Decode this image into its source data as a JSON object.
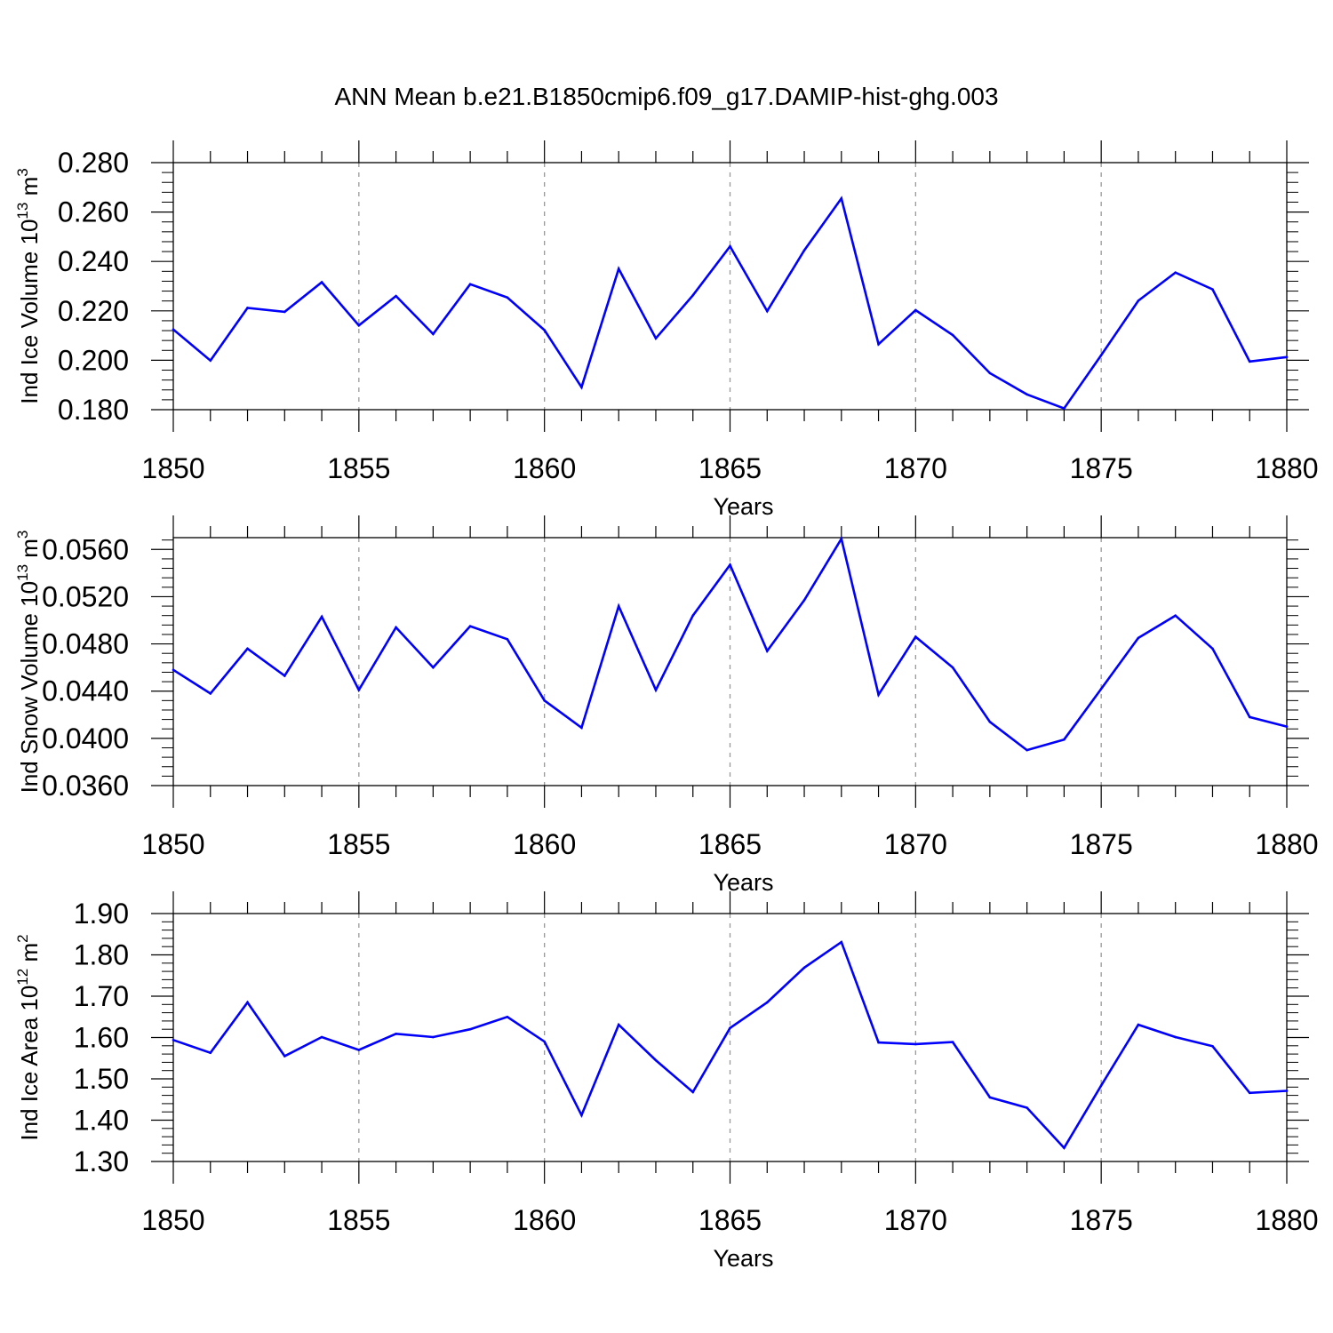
{
  "title": "ANN Mean b.e21.B1850cmip6.f09_g17.DAMIP-hist-ghg.003",
  "line_color": "#0000ff",
  "chart_data": [
    {
      "type": "line",
      "ylabel": "Ind Ice Volume 10",
      "ylabel_exp": "13",
      "ylabel_unit": " m",
      "ylabel_unit_exp": "3",
      "xlabel": "Years",
      "xlim": [
        1850,
        1880
      ],
      "ylim": [
        0.18,
        0.28
      ],
      "yticks": [
        "0.180",
        "0.200",
        "0.220",
        "0.240",
        "0.260",
        "0.280"
      ],
      "ytick_values": [
        0.18,
        0.2,
        0.22,
        0.24,
        0.26,
        0.28
      ],
      "xticks": [
        "1850",
        "1855",
        "1860",
        "1865",
        "1870",
        "1875",
        "1880"
      ],
      "grid": "vertical dashed at major x ticks",
      "x": [
        1850,
        1851,
        1852,
        1853,
        1854,
        1855,
        1856,
        1857,
        1858,
        1859,
        1860,
        1861,
        1862,
        1863,
        1864,
        1865,
        1866,
        1867,
        1868,
        1869,
        1870,
        1871,
        1872,
        1873,
        1874,
        1875,
        1876,
        1877,
        1878,
        1879,
        1880
      ],
      "values": [
        0.2125,
        0.1999,
        0.2212,
        0.2196,
        0.2316,
        0.2141,
        0.226,
        0.2106,
        0.2308,
        0.2254,
        0.2122,
        0.1891,
        0.237,
        0.2089,
        0.2263,
        0.2461,
        0.2199,
        0.2445,
        0.2655,
        0.2065,
        0.2203,
        0.2102,
        0.1948,
        0.1862,
        0.1805,
        0.2021,
        0.2241,
        0.2355,
        0.2287,
        0.1995,
        0.2013
      ]
    },
    {
      "type": "line",
      "ylabel": "Ind Snow Volume 10",
      "ylabel_exp": "13",
      "ylabel_unit": " m",
      "ylabel_unit_exp": "3",
      "xlabel": "Years",
      "xlim": [
        1850,
        1880
      ],
      "ylim": [
        0.036,
        0.057
      ],
      "yticks": [
        "0.0360",
        "0.0400",
        "0.0440",
        "0.0480",
        "0.0520",
        "0.0560"
      ],
      "ytick_values": [
        0.036,
        0.04,
        0.044,
        0.048,
        0.052,
        0.056
      ],
      "xticks": [
        "1850",
        "1855",
        "1860",
        "1865",
        "1870",
        "1875",
        "1880"
      ],
      "grid": "vertical dashed at major x ticks",
      "x": [
        1850,
        1851,
        1852,
        1853,
        1854,
        1855,
        1856,
        1857,
        1858,
        1859,
        1860,
        1861,
        1862,
        1863,
        1864,
        1865,
        1866,
        1867,
        1868,
        1869,
        1870,
        1871,
        1872,
        1873,
        1874,
        1875,
        1876,
        1877,
        1878,
        1879,
        1880
      ],
      "values": [
        0.0458,
        0.0438,
        0.0476,
        0.0453,
        0.0503,
        0.0441,
        0.0494,
        0.046,
        0.0495,
        0.0484,
        0.0432,
        0.0409,
        0.0512,
        0.0441,
        0.0504,
        0.0547,
        0.0474,
        0.0517,
        0.0569,
        0.0437,
        0.0486,
        0.046,
        0.0414,
        0.039,
        0.0399,
        0.0442,
        0.0485,
        0.0504,
        0.0476,
        0.0418,
        0.041
      ]
    },
    {
      "type": "line",
      "ylabel": "Ind Ice Area 10",
      "ylabel_exp": "12",
      "ylabel_unit": " m",
      "ylabel_unit_exp": "2",
      "xlabel": "Years",
      "xlim": [
        1850,
        1880
      ],
      "ylim": [
        1.3,
        1.9
      ],
      "yticks": [
        "1.30",
        "1.40",
        "1.50",
        "1.60",
        "1.70",
        "1.80",
        "1.90"
      ],
      "ytick_values": [
        1.3,
        1.4,
        1.5,
        1.6,
        1.7,
        1.8,
        1.9
      ],
      "xticks": [
        "1850",
        "1855",
        "1860",
        "1865",
        "1870",
        "1875",
        "1880"
      ],
      "grid": "vertical dashed at major x ticks",
      "x": [
        1850,
        1851,
        1852,
        1853,
        1854,
        1855,
        1856,
        1857,
        1858,
        1859,
        1860,
        1861,
        1862,
        1863,
        1864,
        1865,
        1866,
        1867,
        1868,
        1869,
        1870,
        1871,
        1872,
        1873,
        1874,
        1875,
        1876,
        1877,
        1878,
        1879,
        1880
      ],
      "values": [
        1.594,
        1.563,
        1.685,
        1.555,
        1.601,
        1.57,
        1.609,
        1.601,
        1.62,
        1.65,
        1.59,
        1.412,
        1.631,
        1.545,
        1.468,
        1.623,
        1.685,
        1.769,
        1.831,
        1.588,
        1.584,
        1.589,
        1.455,
        1.43,
        1.333,
        1.484,
        1.631,
        1.601,
        1.579,
        1.466,
        1.471
      ]
    }
  ]
}
